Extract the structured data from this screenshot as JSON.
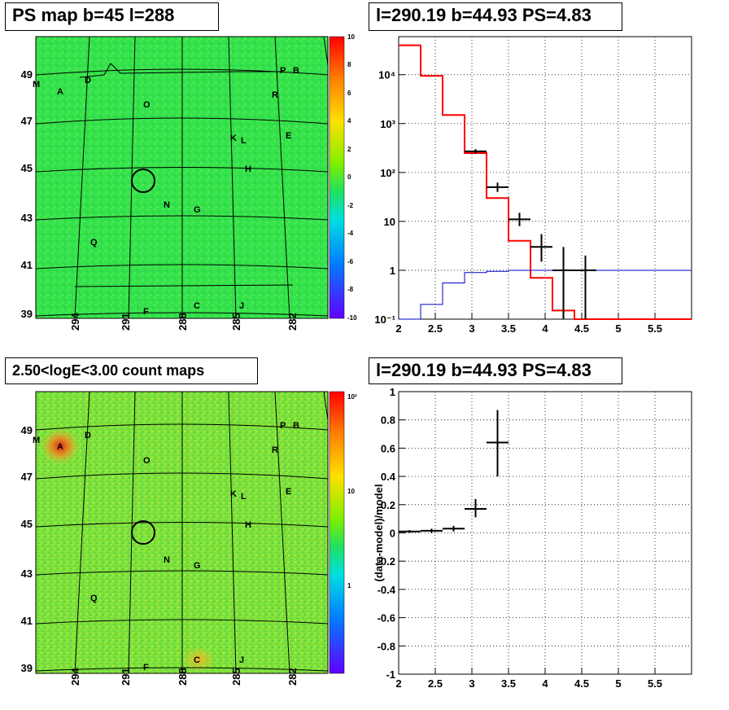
{
  "panels": {
    "ps_map_title": "PS map b=45 l=288",
    "spectrum_title": "l=290.19 b=44.93 PS=4.83",
    "count_map_title": "2.50<logE<3.00 count maps",
    "residual_title": "l=290.19 b=44.93 PS=4.83"
  },
  "maps": {
    "lat_ticks": [
      "49",
      "47",
      "45",
      "43",
      "41",
      "39"
    ],
    "lon_ticks": [
      "294",
      "291",
      "288",
      "285",
      "282"
    ],
    "sources": [
      "M",
      "A",
      "D",
      "O",
      "P",
      "B",
      "R",
      "K",
      "L",
      "E",
      "H",
      "N",
      "G",
      "Q",
      "F",
      "C",
      "J"
    ],
    "ps_colorbar_ticks": [
      "10",
      "8",
      "6",
      "4",
      "2",
      "0",
      "-2",
      "-4",
      "-6",
      "-8",
      "-10"
    ],
    "count_colorbar_ticks": [
      "10²",
      "10",
      "1"
    ],
    "colors": {
      "ps_background": "#33e24a",
      "count_background": "#7fe03a",
      "hotspot": "#e8231a",
      "marker": "#000000"
    }
  },
  "chart_data": [
    {
      "type": "step",
      "title": "l=290.19 b=44.93 PS=4.83",
      "xlabel": "",
      "ylabel": "",
      "xlim": [
        2,
        6
      ],
      "ylim": [
        0.1,
        60000
      ],
      "yscale": "log",
      "grid": true,
      "x_ticks": [
        "2",
        "2.5",
        "3",
        "3.5",
        "4",
        "4.5",
        "5",
        "5.5"
      ],
      "y_ticks": [
        "10⁻¹",
        "1",
        "10",
        "10²",
        "10³",
        "10⁴"
      ],
      "series": [
        {
          "style": "step",
          "color": "#ff0000",
          "edges": [
            2.0,
            2.3,
            2.6,
            2.9,
            3.2,
            3.5,
            3.8,
            4.1,
            4.4,
            4.7,
            5.0,
            5.3,
            5.6,
            6.0
          ],
          "values": [
            40000,
            9500,
            1500,
            250,
            30,
            4,
            0.7,
            0.15,
            0.1,
            0.1,
            0.1,
            0.1,
            0.1
          ]
        },
        {
          "style": "step",
          "color": "#0000cc",
          "edges": [
            2.0,
            2.3,
            2.6,
            2.9,
            3.2,
            3.5,
            3.8,
            4.1,
            4.4,
            4.7,
            5.0,
            5.3,
            5.6,
            6.0
          ],
          "values": [
            0.1,
            0.2,
            0.55,
            0.9,
            0.95,
            1.0,
            1.0,
            1.0,
            1.0,
            1.0,
            1.0,
            1.0,
            1.0
          ]
        },
        {
          "style": "errorbar",
          "color": "#000000",
          "points": [
            {
              "x": 3.05,
              "y": 270,
              "xerr": 0.15,
              "ylo": 240,
              "yhi": 300
            },
            {
              "x": 3.35,
              "y": 50,
              "xerr": 0.15,
              "ylo": 40,
              "yhi": 62
            },
            {
              "x": 3.65,
              "y": 11,
              "xerr": 0.15,
              "ylo": 8,
              "yhi": 15
            },
            {
              "x": 3.95,
              "y": 3,
              "xerr": 0.15,
              "ylo": 1.5,
              "yhi": 5.5
            },
            {
              "x": 4.25,
              "y": 1,
              "xerr": 0.15,
              "ylo": 0.1,
              "yhi": 3
            },
            {
              "x": 4.55,
              "y": 1,
              "xerr": 0.15,
              "ylo": 0.1,
              "yhi": 2
            }
          ]
        }
      ]
    },
    {
      "type": "scatter",
      "title": "l=290.19 b=44.93 PS=4.83",
      "xlabel": "",
      "ylabel": "(data-model)/model",
      "xlim": [
        2,
        6
      ],
      "ylim": [
        -1,
        1
      ],
      "grid": true,
      "x_ticks": [
        "2",
        "2.5",
        "3",
        "3.5",
        "4",
        "4.5",
        "5",
        "5.5"
      ],
      "y_ticks": [
        "-1",
        "-0.8",
        "-0.6",
        "-0.4",
        "-0.2",
        "0",
        "0.2",
        "0.4",
        "0.6",
        "0.8",
        "1"
      ],
      "series": [
        {
          "style": "errorbar",
          "color": "#000000",
          "points": [
            {
              "x": 2.15,
              "y": 0.01,
              "xerr": 0.15,
              "ylo": 0.0,
              "yhi": 0.02
            },
            {
              "x": 2.45,
              "y": 0.015,
              "xerr": 0.15,
              "ylo": 0.0,
              "yhi": 0.03
            },
            {
              "x": 2.75,
              "y": 0.03,
              "xerr": 0.15,
              "ylo": 0.01,
              "yhi": 0.05
            },
            {
              "x": 3.05,
              "y": 0.17,
              "xerr": 0.15,
              "ylo": 0.11,
              "yhi": 0.24
            },
            {
              "x": 3.35,
              "y": 0.64,
              "xerr": 0.15,
              "ylo": 0.4,
              "yhi": 0.87
            }
          ]
        }
      ]
    }
  ]
}
